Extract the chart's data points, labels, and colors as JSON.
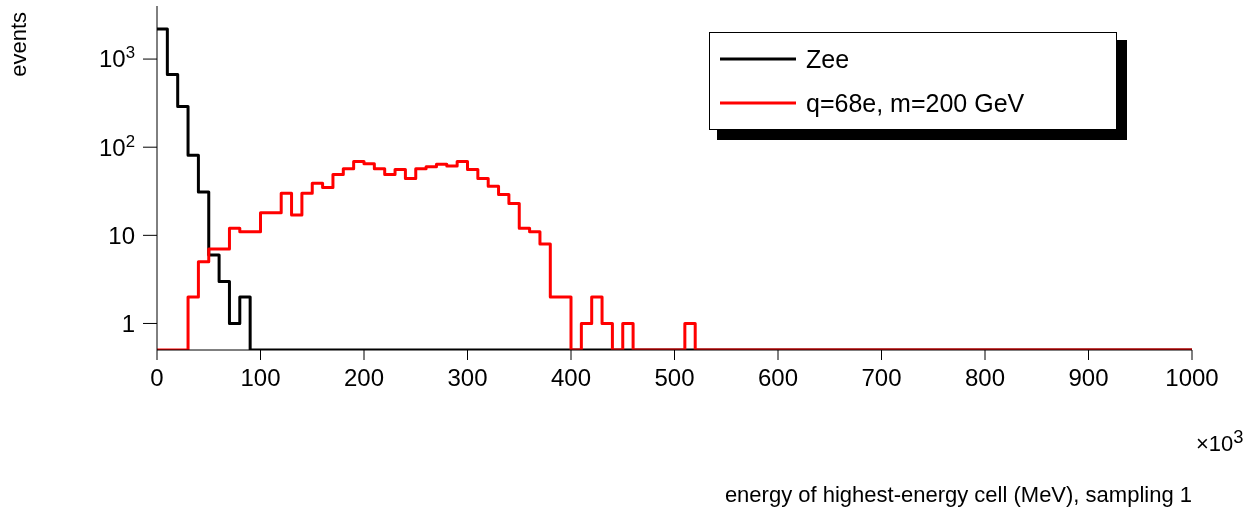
{
  "chart_data": {
    "type": "histogram",
    "xlabel": "energy of highest-energy cell (MeV), sampling 1",
    "ylabel": "events",
    "bins": [
      0,
      10,
      20,
      30,
      40,
      50,
      60,
      70,
      80,
      90,
      100,
      110,
      120,
      130,
      140,
      150,
      160,
      170,
      180,
      190,
      200,
      210,
      220,
      230,
      240,
      250,
      260,
      270,
      280,
      290,
      300,
      310,
      320,
      330,
      340,
      350,
      360,
      370,
      380,
      390,
      400,
      410,
      420,
      430,
      440,
      450,
      460,
      470,
      480,
      490,
      500,
      510,
      520,
      530,
      540,
      550,
      560,
      570,
      580,
      590,
      600,
      610,
      620,
      630,
      640,
      650,
      660,
      670,
      680,
      690,
      700,
      710,
      720,
      730,
      740,
      750,
      760,
      770,
      780,
      790,
      800,
      810,
      820,
      830,
      840,
      850,
      860,
      870,
      880,
      890,
      900,
      910,
      920,
      930,
      940,
      950,
      960,
      970,
      980,
      990,
      1000
    ],
    "series": [
      {
        "name": "Zee",
        "color": "#000000",
        "values": [
          2200,
          670,
          290,
          81,
          31,
          6,
          3,
          1,
          2,
          null,
          null,
          null,
          null,
          null,
          null,
          null,
          null,
          null,
          null,
          null,
          null,
          null,
          null,
          null,
          null,
          null,
          null,
          null,
          null,
          null,
          null,
          null,
          null,
          null,
          null,
          null,
          null,
          null,
          null,
          null,
          null,
          null,
          null,
          null,
          null,
          null,
          null,
          null,
          null,
          null,
          null,
          null,
          null,
          null,
          null,
          null,
          null,
          null,
          null,
          null,
          null,
          null,
          null,
          null,
          null,
          null,
          null,
          null,
          null,
          null,
          null,
          null,
          null,
          null,
          null,
          null,
          null,
          null,
          null,
          null,
          null,
          null,
          null,
          null,
          null,
          null,
          null,
          null,
          null,
          null,
          null,
          null,
          null,
          null,
          null,
          null,
          null,
          null,
          null,
          null
        ]
      },
      {
        "name": "q=68e, m=200 GeV",
        "color": "#ff0000",
        "values": [
          null,
          null,
          null,
          2,
          5,
          7,
          7,
          12,
          11,
          11,
          18,
          18,
          30,
          17,
          30,
          39,
          35,
          49,
          57,
          69,
          65,
          57,
          49,
          56,
          44,
          57,
          60,
          64,
          61,
          69,
          56,
          44,
          36,
          29,
          23,
          12,
          11,
          8,
          2,
          2,
          null,
          1,
          2,
          1,
          null,
          1,
          null,
          null,
          null,
          null,
          null,
          1,
          null,
          null,
          null,
          null,
          null,
          null,
          null,
          null,
          null,
          null,
          null,
          null,
          null,
          null,
          null,
          null,
          null,
          null,
          null,
          null,
          null,
          null,
          null,
          null,
          null,
          null,
          null,
          null,
          null,
          null,
          null,
          null,
          null,
          null,
          null,
          null,
          null,
          null,
          null,
          null,
          null,
          null,
          null,
          null,
          null,
          null,
          null,
          null
        ]
      }
    ],
    "xlim": [
      0,
      1000
    ],
    "xticks": [
      0,
      100,
      200,
      300,
      400,
      500,
      600,
      700,
      800,
      900,
      1000
    ],
    "ylim": [
      0.5,
      4000
    ],
    "yticks": [
      1,
      10,
      {
        "value": 100,
        "label": "10$^{2}$"
      },
      {
        "value": 1000,
        "label": "10$^{3}$"
      }
    ],
    "log": "y",
    "grid": false,
    "legend": "top right",
    "annotations": [
      "×10$^{3}$"
    ]
  }
}
